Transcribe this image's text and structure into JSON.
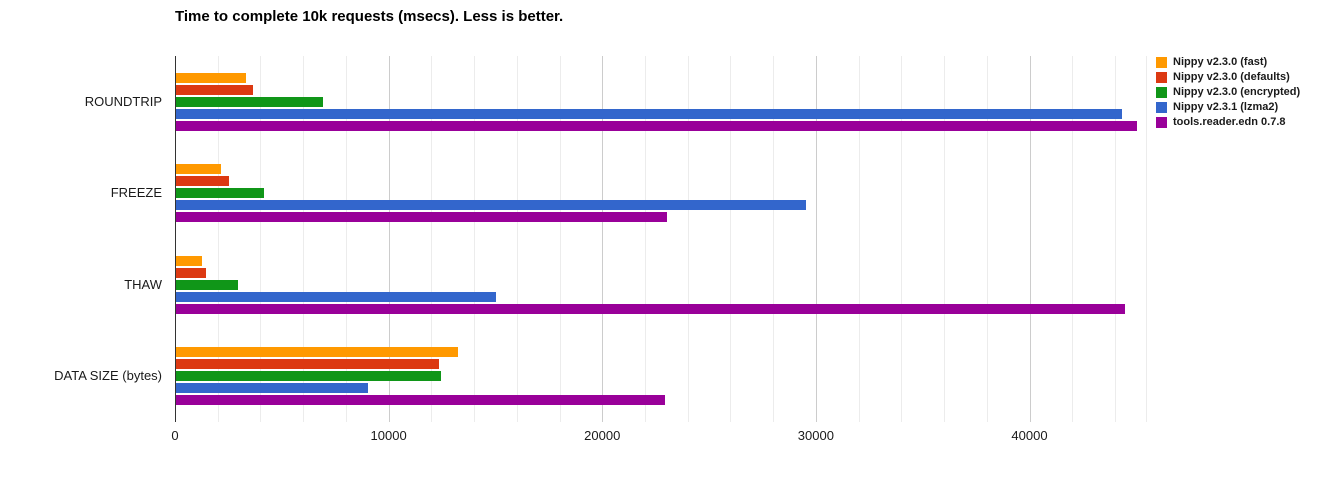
{
  "title": "Time to complete 10k requests (msecs). Less is better.",
  "chart_data": {
    "type": "bar",
    "orientation": "horizontal",
    "title": "Time to complete 10k requests (msecs). Less is better.",
    "xlabel": "",
    "ylabel": "",
    "categories": [
      "ROUNDTRIP",
      "FREEZE",
      "THAW",
      "DATA SIZE (bytes)"
    ],
    "series": [
      {
        "name": "Nippy v2.3.0 (fast)",
        "color": "#ff9900",
        "values": [
          3300,
          2100,
          1200,
          13200
        ]
      },
      {
        "name": "Nippy v2.3.0 (defaults)",
        "color": "#dc3912",
        "values": [
          3600,
          2500,
          1400,
          12300
        ]
      },
      {
        "name": "Nippy v2.3.0 (encrypted)",
        "color": "#109618",
        "values": [
          6900,
          4100,
          2900,
          12400
        ]
      },
      {
        "name": "Nippy v2.3.1 (lzma2)",
        "color": "#3366cc",
        "values": [
          44300,
          29500,
          15000,
          9000
        ]
      },
      {
        "name": "tools.reader.edn 0.7.8",
        "color": "#990099",
        "values": [
          45000,
          23000,
          44400,
          22900
        ]
      }
    ],
    "xlim": [
      0,
      45500
    ],
    "x_ticks": [
      0,
      10000,
      20000,
      30000,
      40000
    ],
    "minor_grid_step": 2000,
    "grid": true,
    "legend_position": "right",
    "background": "#ffffff"
  }
}
